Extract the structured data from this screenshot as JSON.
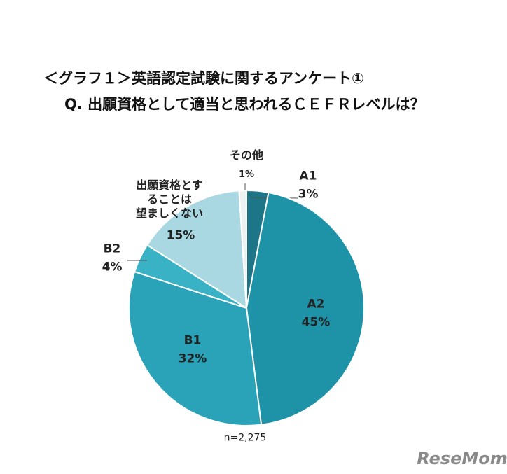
{
  "title": "＜グラフ１＞英語認定試験に関するアンケート①",
  "subtitle": "Q. 出願資格として適当と思われるＣＥＦＲレベルは？",
  "chart_data": {
    "type": "pie",
    "categories": [
      "A1",
      "A2",
      "B1",
      "B2",
      "出願資格とす\nることは\n望ましくない",
      "その他"
    ],
    "values": [
      3,
      45,
      32,
      4,
      15,
      1
    ],
    "value_labels": [
      "3%",
      "45%",
      "32%",
      "4%",
      "15%",
      "1%"
    ],
    "colors": [
      "#1c7688",
      "#1e93a8",
      "#2aa3b9",
      "#3ab2c6",
      "#a9d8e3",
      "#edf2f3"
    ],
    "note": "n=2,275"
  },
  "watermark": "ReseMom"
}
